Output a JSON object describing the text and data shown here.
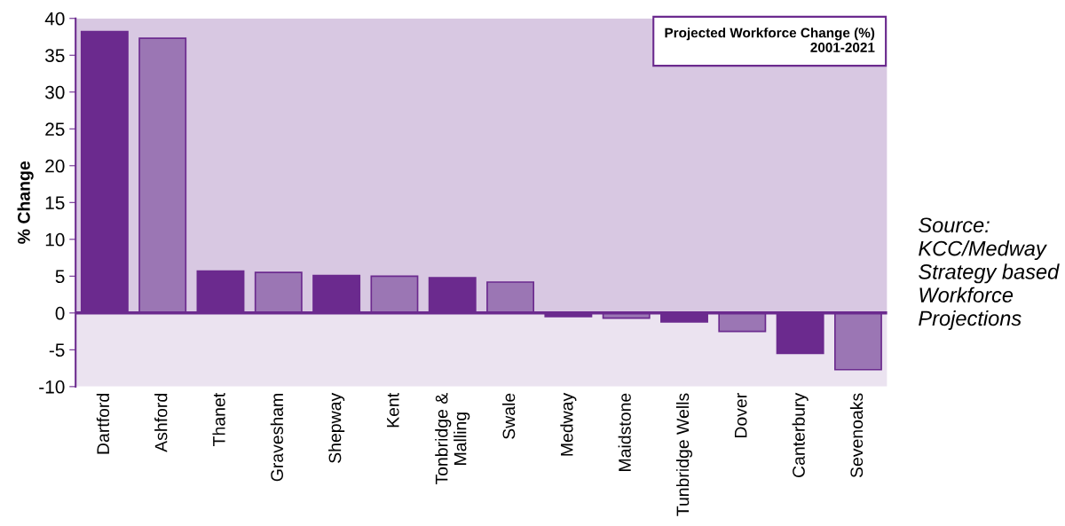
{
  "chart_data": {
    "type": "bar",
    "title": "Projected Workforce Change (%)\n2001-2021",
    "ylabel": "% Change",
    "categories": [
      "Dartford",
      "Ashford",
      "Thanet",
      "Gravesham",
      "Shepway",
      "Kent",
      "Tonbridge &\nMalling",
      "Swale",
      "Medway",
      "Maidstone",
      "Tunbridge Wells",
      "Dover",
      "Canterbury",
      "Sevenoaks"
    ],
    "values": [
      38.2,
      37.3,
      5.7,
      5.5,
      5.1,
      5.0,
      4.8,
      4.2,
      -0.5,
      -0.7,
      -1.2,
      -2.5,
      -5.5,
      -7.7
    ],
    "colors": [
      "#6b2a8e",
      "#9b76b4",
      "#6b2a8e",
      "#9b76b4",
      "#6b2a8e",
      "#9b76b4",
      "#6b2a8e",
      "#9b76b4",
      "#6b2a8e",
      "#9b76b4",
      "#6b2a8e",
      "#9b76b4",
      "#6b2a8e",
      "#9b76b4"
    ],
    "ylim": [
      -10,
      40
    ],
    "yticks": [
      -10,
      -5,
      0,
      5,
      10,
      15,
      20,
      25,
      30,
      35,
      40
    ],
    "bands": [
      {
        "axis": "y",
        "from": 0,
        "to": 40,
        "color": "#d8c8e2"
      },
      {
        "axis": "y",
        "from": -10,
        "to": 0,
        "color": "#ebe3f0"
      }
    ],
    "ref_lines": [
      {
        "axis": "y",
        "value": 0,
        "color": "#6b2a8e"
      }
    ],
    "grid": false,
    "legend": false,
    "annotations": [
      "Source:\nKCC/Medway\nStrategy based\nWorkforce\nProjections"
    ]
  }
}
